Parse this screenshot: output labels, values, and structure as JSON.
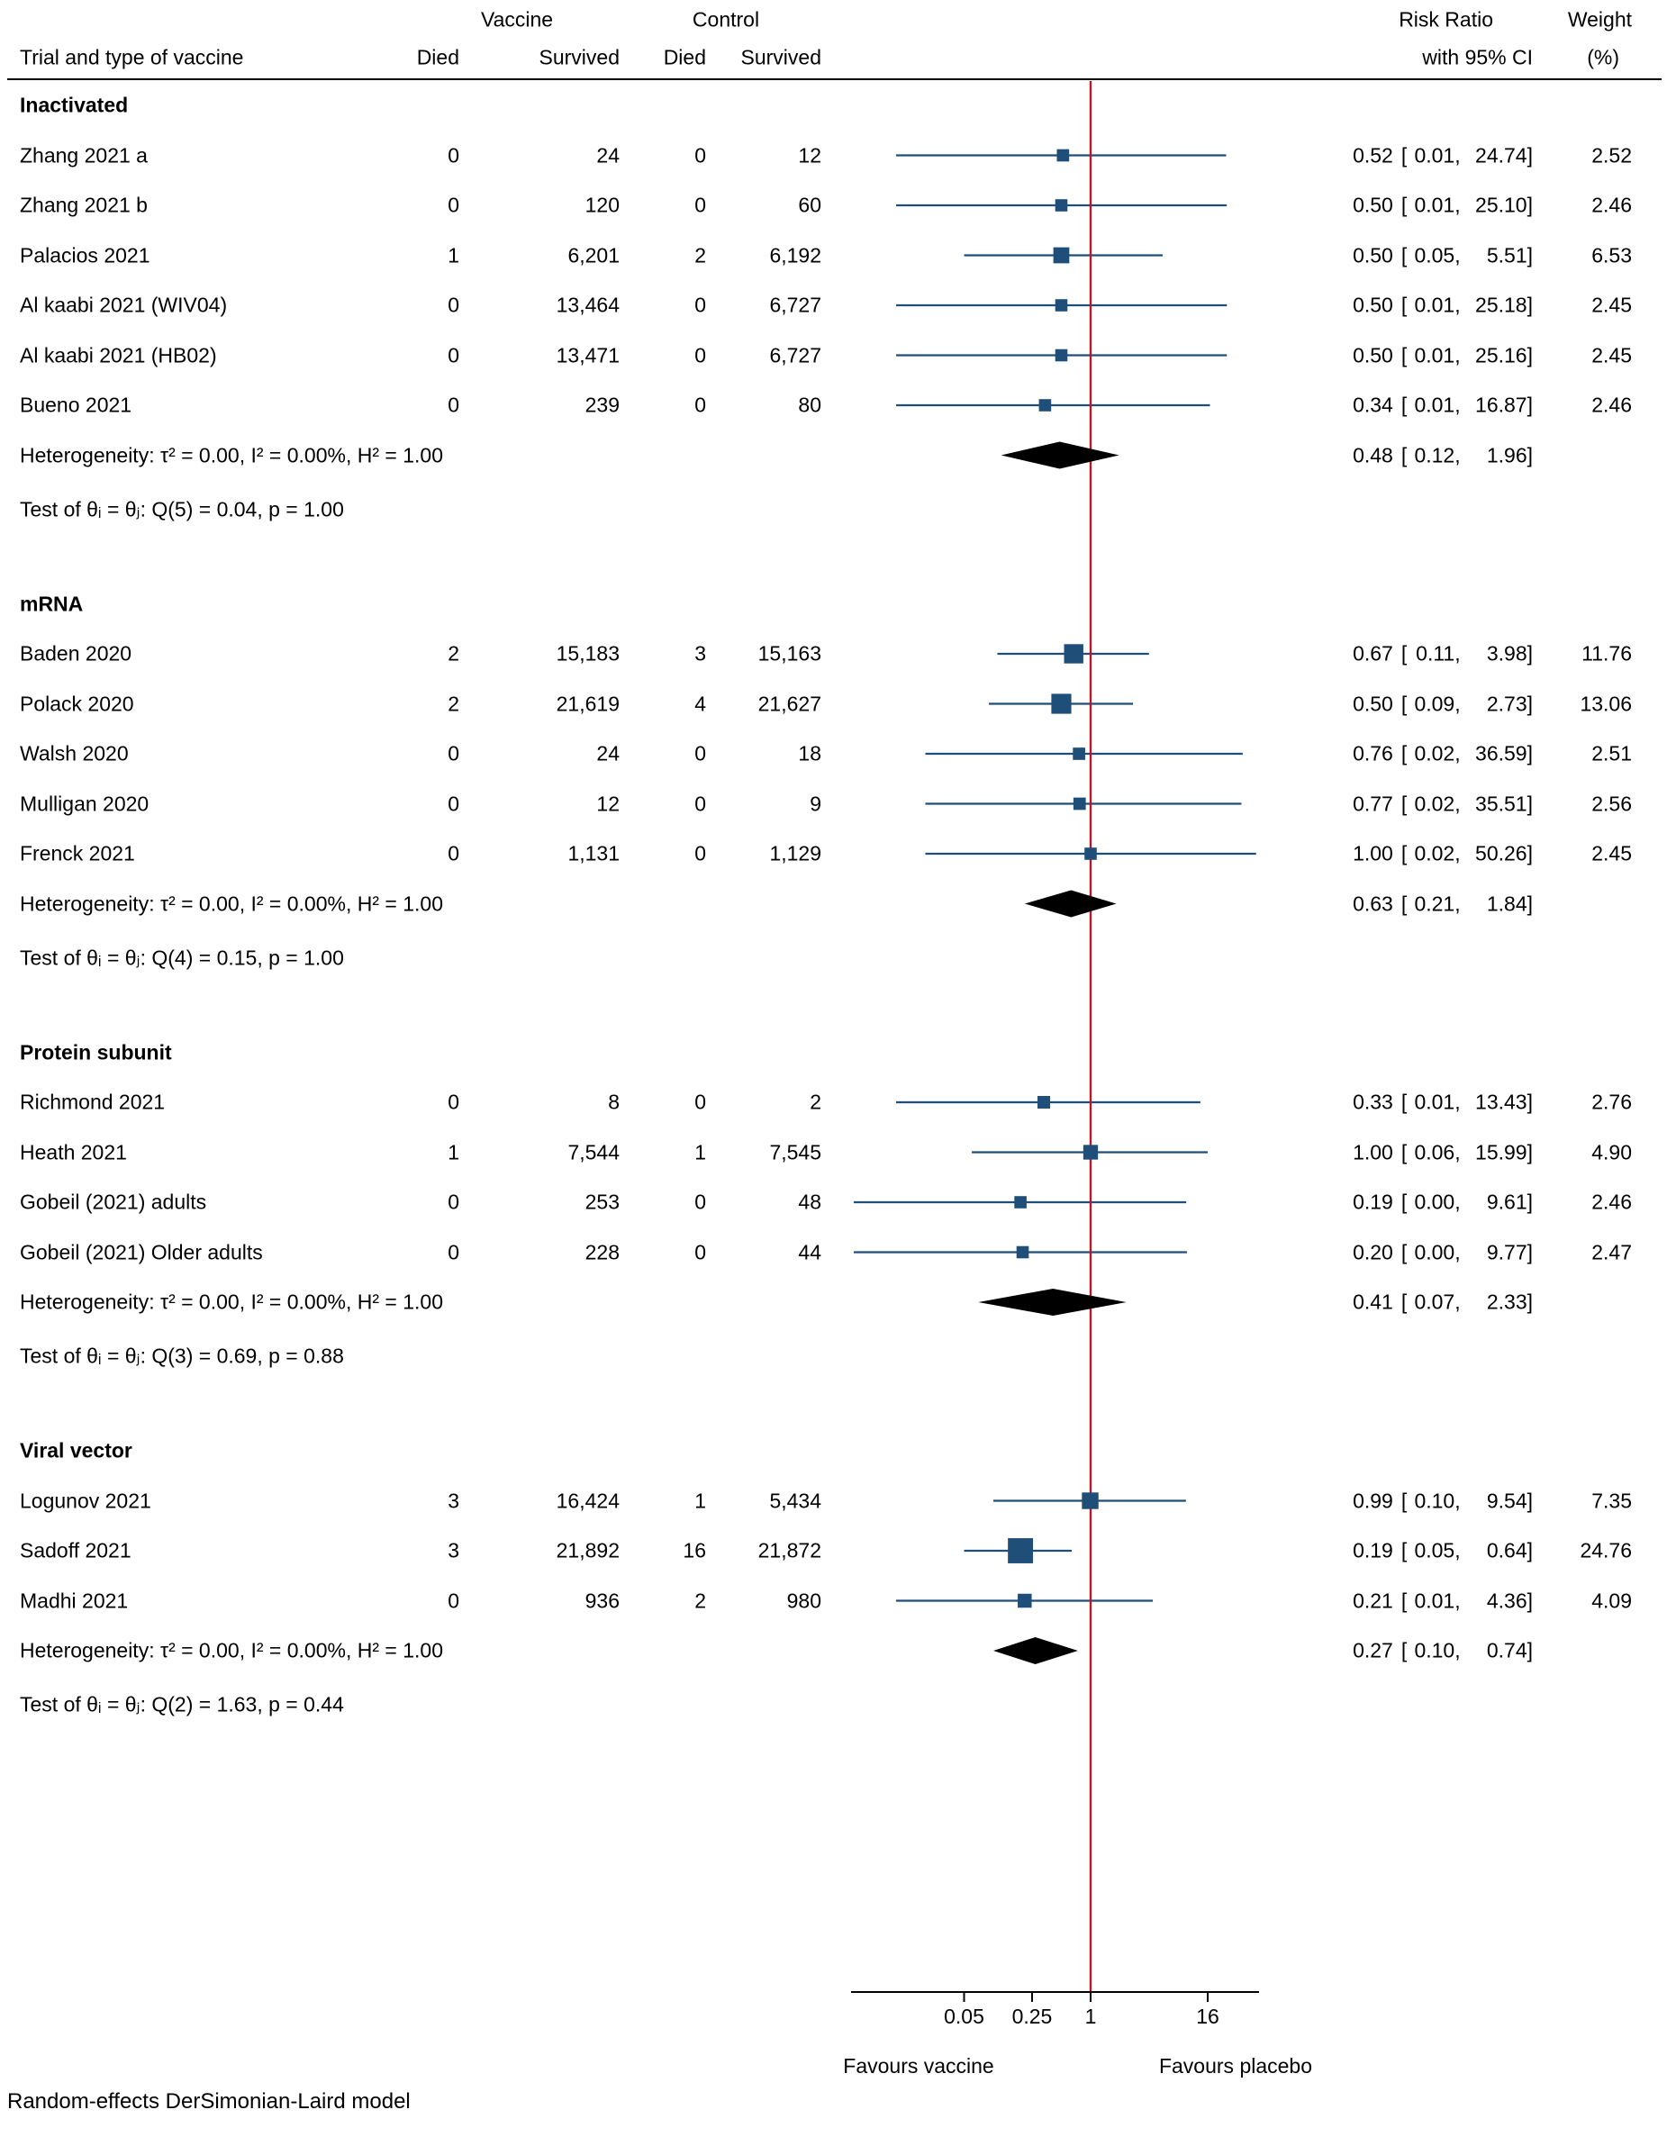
{
  "header": {
    "trial_col": "Trial and type of vaccine",
    "vaccine_group": "Vaccine",
    "control_group": "Control",
    "died_col": "Died",
    "survived_col": "Survived",
    "died_col2": "Died",
    "survived_col2": "Survived",
    "rr_line1": "Risk Ratio",
    "rr_line2": "with 95% CI",
    "weight_line1": "Weight",
    "weight_line2": "(%)"
  },
  "format": {
    "open_bracket": "[",
    "comma": ",",
    "close_bracket": "]"
  },
  "axis": {
    "scale": "log",
    "tick_values": [
      0.05,
      0.25,
      1,
      16
    ],
    "tick_labels": [
      "0.05",
      "0.25",
      "1",
      "16"
    ],
    "reference_value": 1,
    "favours_left": "Favours vaccine",
    "favours_right": "Favours placebo"
  },
  "footer": {
    "model_label": "Random-effects DerSimonian-Laird model"
  },
  "colors": {
    "marker": "#1f4e79",
    "ci_line": "#1f4e79",
    "reference_line": "#b5182b",
    "diamond": "#000000",
    "axis": "#000000",
    "rule": "#000000",
    "text": "#000000",
    "background": "#ffffff"
  },
  "chart_data": {
    "type": "forest",
    "x_scale": "log",
    "x_ticks": [
      0.05,
      0.25,
      1,
      16
    ],
    "reference_line": 1,
    "effect_label": "Risk Ratio",
    "groups": [
      {
        "name": "Inactivated",
        "studies": [
          {
            "label": "Zhang 2021 a",
            "vaccine_died": "0",
            "vaccine_survived": "24",
            "control_died": "0",
            "control_survived": "12",
            "rr": 0.52,
            "ci_low": 0.01,
            "ci_high": 24.74,
            "rr_text": "0.52",
            "low_text": "0.01",
            "high_text": "24.74",
            "weight": 2.52,
            "weight_text": "2.52"
          },
          {
            "label": "Zhang 2021 b",
            "vaccine_died": "0",
            "vaccine_survived": "120",
            "control_died": "0",
            "control_survived": "60",
            "rr": 0.5,
            "ci_low": 0.01,
            "ci_high": 25.1,
            "rr_text": "0.50",
            "low_text": "0.01",
            "high_text": "25.10",
            "weight": 2.46,
            "weight_text": "2.46"
          },
          {
            "label": "Palacios 2021",
            "vaccine_died": "1",
            "vaccine_survived": "6,201",
            "control_died": "2",
            "control_survived": "6,192",
            "rr": 0.5,
            "ci_low": 0.05,
            "ci_high": 5.51,
            "rr_text": "0.50",
            "low_text": "0.05",
            "high_text": "5.51",
            "weight": 6.53,
            "weight_text": "6.53"
          },
          {
            "label": "Al kaabi 2021 (WIV04)",
            "vaccine_died": "0",
            "vaccine_survived": "13,464",
            "control_died": "0",
            "control_survived": "6,727",
            "rr": 0.5,
            "ci_low": 0.01,
            "ci_high": 25.18,
            "rr_text": "0.50",
            "low_text": "0.01",
            "high_text": "25.18",
            "weight": 2.45,
            "weight_text": "2.45"
          },
          {
            "label": "Al kaabi 2021 (HB02)",
            "vaccine_died": "0",
            "vaccine_survived": "13,471",
            "control_died": "0",
            "control_survived": "6,727",
            "rr": 0.5,
            "ci_low": 0.01,
            "ci_high": 25.16,
            "rr_text": "0.50",
            "low_text": "0.01",
            "high_text": "25.16",
            "weight": 2.45,
            "weight_text": "2.45"
          },
          {
            "label": "Bueno 2021",
            "vaccine_died": "0",
            "vaccine_survived": "239",
            "control_died": "0",
            "control_survived": "80",
            "rr": 0.34,
            "ci_low": 0.01,
            "ci_high": 16.87,
            "rr_text": "0.34",
            "low_text": "0.01",
            "high_text": "16.87",
            "weight": 2.46,
            "weight_text": "2.46"
          }
        ],
        "heterogeneity_label": "Heterogeneity: τ² = 0.00, I² = 0.00%, H² = 1.00",
        "summary": {
          "rr": 0.48,
          "ci_low": 0.12,
          "ci_high": 1.96,
          "rr_text": "0.48",
          "low_text": "0.12",
          "high_text": "1.96"
        },
        "test_label": "Test of θᵢ = θⱼ: Q(5) = 0.04, p = 1.00"
      },
      {
        "name": "mRNA",
        "studies": [
          {
            "label": "Baden 2020",
            "vaccine_died": "2",
            "vaccine_survived": "15,183",
            "control_died": "3",
            "control_survived": "15,163",
            "rr": 0.67,
            "ci_low": 0.11,
            "ci_high": 3.98,
            "rr_text": "0.67",
            "low_text": "0.11",
            "high_text": "3.98",
            "weight": 11.76,
            "weight_text": "11.76"
          },
          {
            "label": "Polack 2020",
            "vaccine_died": "2",
            "vaccine_survived": "21,619",
            "control_died": "4",
            "control_survived": "21,627",
            "rr": 0.5,
            "ci_low": 0.09,
            "ci_high": 2.73,
            "rr_text": "0.50",
            "low_text": "0.09",
            "high_text": "2.73",
            "weight": 13.06,
            "weight_text": "13.06"
          },
          {
            "label": "Walsh 2020",
            "vaccine_died": "0",
            "vaccine_survived": "24",
            "control_died": "0",
            "control_survived": "18",
            "rr": 0.76,
            "ci_low": 0.02,
            "ci_high": 36.59,
            "rr_text": "0.76",
            "low_text": "0.02",
            "high_text": "36.59",
            "weight": 2.51,
            "weight_text": "2.51"
          },
          {
            "label": "Mulligan 2020",
            "vaccine_died": "0",
            "vaccine_survived": "12",
            "control_died": "0",
            "control_survived": "9",
            "rr": 0.77,
            "ci_low": 0.02,
            "ci_high": 35.51,
            "rr_text": "0.77",
            "low_text": "0.02",
            "high_text": "35.51",
            "weight": 2.56,
            "weight_text": "2.56"
          },
          {
            "label": "Frenck 2021",
            "vaccine_died": "0",
            "vaccine_survived": "1,131",
            "control_died": "0",
            "control_survived": "1,129",
            "rr": 1.0,
            "ci_low": 0.02,
            "ci_high": 50.26,
            "rr_text": "1.00",
            "low_text": "0.02",
            "high_text": "50.26",
            "weight": 2.45,
            "weight_text": "2.45"
          }
        ],
        "heterogeneity_label": "Heterogeneity: τ² = 0.00, I² = 0.00%, H² = 1.00",
        "summary": {
          "rr": 0.63,
          "ci_low": 0.21,
          "ci_high": 1.84,
          "rr_text": "0.63",
          "low_text": "0.21",
          "high_text": "1.84"
        },
        "test_label": "Test of θᵢ = θⱼ: Q(4) = 0.15, p = 1.00"
      },
      {
        "name": "Protein subunit",
        "studies": [
          {
            "label": "Richmond 2021",
            "vaccine_died": "0",
            "vaccine_survived": "8",
            "control_died": "0",
            "control_survived": "2",
            "rr": 0.33,
            "ci_low": 0.01,
            "ci_high": 13.43,
            "rr_text": "0.33",
            "low_text": "0.01",
            "high_text": "13.43",
            "weight": 2.76,
            "weight_text": "2.76"
          },
          {
            "label": "Heath 2021",
            "vaccine_died": "1",
            "vaccine_survived": "7,544",
            "control_died": "1",
            "control_survived": "7,545",
            "rr": 1.0,
            "ci_low": 0.06,
            "ci_high": 15.99,
            "rr_text": "1.00",
            "low_text": "0.06",
            "high_text": "15.99",
            "weight": 4.9,
            "weight_text": "4.90"
          },
          {
            "label": "Gobeil (2021) adults",
            "vaccine_died": "0",
            "vaccine_survived": "253",
            "control_died": "0",
            "control_survived": "48",
            "rr": 0.19,
            "ci_low": 0.0,
            "ci_low_plot": 0.003,
            "ci_high": 9.61,
            "rr_text": "0.19",
            "low_text": "0.00",
            "high_text": "9.61",
            "weight": 2.46,
            "weight_text": "2.46"
          },
          {
            "label": "Gobeil (2021) Older adults",
            "vaccine_died": "0",
            "vaccine_survived": "228",
            "control_died": "0",
            "control_survived": "44",
            "rr": 0.2,
            "ci_low": 0.0,
            "ci_low_plot": 0.003,
            "ci_high": 9.77,
            "rr_text": "0.20",
            "low_text": "0.00",
            "high_text": "9.77",
            "weight": 2.47,
            "weight_text": "2.47"
          }
        ],
        "heterogeneity_label": "Heterogeneity: τ² = 0.00, I² = 0.00%, H² = 1.00",
        "summary": {
          "rr": 0.41,
          "ci_low": 0.07,
          "ci_high": 2.33,
          "rr_text": "0.41",
          "low_text": "0.07",
          "high_text": "2.33"
        },
        "test_label": "Test of θᵢ = θⱼ: Q(3) = 0.69, p = 0.88"
      },
      {
        "name": "Viral vector",
        "studies": [
          {
            "label": "Logunov 2021",
            "vaccine_died": "3",
            "vaccine_survived": "16,424",
            "control_died": "1",
            "control_survived": "5,434",
            "rr": 0.99,
            "ci_low": 0.1,
            "ci_high": 9.54,
            "rr_text": "0.99",
            "low_text": "0.10",
            "high_text": "9.54",
            "weight": 7.35,
            "weight_text": "7.35"
          },
          {
            "label": "Sadoff 2021",
            "vaccine_died": "3",
            "vaccine_survived": "21,892",
            "control_died": "16",
            "control_survived": "21,872",
            "rr": 0.19,
            "ci_low": 0.05,
            "ci_high": 0.64,
            "rr_text": "0.19",
            "low_text": "0.05",
            "high_text": "0.64",
            "weight": 24.76,
            "weight_text": "24.76"
          },
          {
            "label": "Madhi 2021",
            "vaccine_died": "0",
            "vaccine_survived": "936",
            "control_died": "2",
            "control_survived": "980",
            "rr": 0.21,
            "ci_low": 0.01,
            "ci_high": 4.36,
            "rr_text": "0.21",
            "low_text": "0.01",
            "high_text": "4.36",
            "weight": 4.09,
            "weight_text": "4.09"
          }
        ],
        "heterogeneity_label": "Heterogeneity: τ² = 0.00, I² = 0.00%, H² = 1.00",
        "summary": {
          "rr": 0.27,
          "ci_low": 0.1,
          "ci_high": 0.74,
          "rr_text": "0.27",
          "low_text": "0.10",
          "high_text": "0.74"
        },
        "test_label": "Test of θᵢ = θⱼ: Q(2) = 1.63, p = 0.44"
      }
    ]
  }
}
